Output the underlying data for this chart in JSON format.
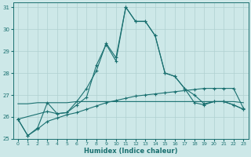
{
  "xlabel": "Humidex (Indice chaleur)",
  "ylabel": "",
  "bg_color": "#cde8e8",
  "line_color": "#1a7070",
  "grid_color": "#b0d0d0",
  "xlim": [
    -0.5,
    23.5
  ],
  "ylim": [
    25.0,
    31.2
  ],
  "xticks": [
    0,
    1,
    2,
    3,
    4,
    5,
    6,
    7,
    8,
    9,
    10,
    11,
    12,
    13,
    14,
    15,
    16,
    17,
    18,
    19,
    20,
    21,
    22,
    23
  ],
  "yticks": [
    25,
    26,
    27,
    28,
    29,
    30,
    31
  ],
  "line1_x": [
    0,
    1,
    2,
    3,
    4,
    5,
    6,
    7,
    8,
    9,
    10,
    11,
    12,
    13,
    14,
    15,
    16,
    17,
    18,
    19,
    20,
    21,
    22,
    23
  ],
  "line1_y": [
    25.9,
    25.15,
    25.5,
    26.65,
    26.15,
    26.2,
    26.7,
    27.3,
    28.1,
    29.35,
    28.7,
    31.0,
    30.35,
    30.35,
    29.7,
    28.0,
    27.85,
    27.3,
    27.0,
    26.6,
    26.7,
    26.7,
    26.55,
    26.35
  ],
  "line2_x": [
    0,
    1,
    2,
    3,
    4,
    5,
    6,
    7,
    8,
    9,
    10,
    11,
    12,
    13,
    14,
    15,
    16,
    17,
    18,
    19,
    20,
    21,
    22,
    23
  ],
  "line2_y": [
    26.6,
    26.6,
    26.65,
    26.65,
    26.65,
    26.65,
    26.7,
    26.7,
    26.7,
    26.7,
    26.7,
    26.7,
    26.7,
    26.7,
    26.7,
    26.7,
    26.7,
    26.7,
    26.7,
    26.7,
    26.7,
    26.7,
    26.7,
    26.65
  ],
  "line3_x": [
    0,
    1,
    2,
    3,
    4,
    5,
    6,
    7,
    8,
    9,
    10,
    11,
    12,
    13,
    14,
    15,
    16,
    17,
    18,
    19,
    20,
    21,
    22,
    23
  ],
  "line3_y": [
    25.9,
    25.15,
    25.45,
    25.8,
    25.95,
    26.1,
    26.2,
    26.35,
    26.5,
    26.65,
    26.75,
    26.85,
    26.95,
    27.0,
    27.05,
    27.1,
    27.15,
    27.2,
    27.25,
    27.3,
    27.3,
    27.3,
    27.3,
    26.4
  ],
  "line4_x": [
    0,
    3,
    4,
    5,
    6,
    7,
    8,
    9,
    10,
    11,
    12,
    13,
    14,
    15,
    16,
    17,
    18,
    19,
    20,
    21,
    22,
    23
  ],
  "line4_y": [
    25.9,
    26.25,
    26.15,
    26.2,
    26.55,
    26.9,
    28.35,
    29.3,
    28.55,
    31.0,
    30.35,
    30.35,
    29.7,
    28.0,
    27.85,
    27.3,
    26.65,
    26.55,
    26.7,
    26.7,
    26.55,
    26.35
  ]
}
